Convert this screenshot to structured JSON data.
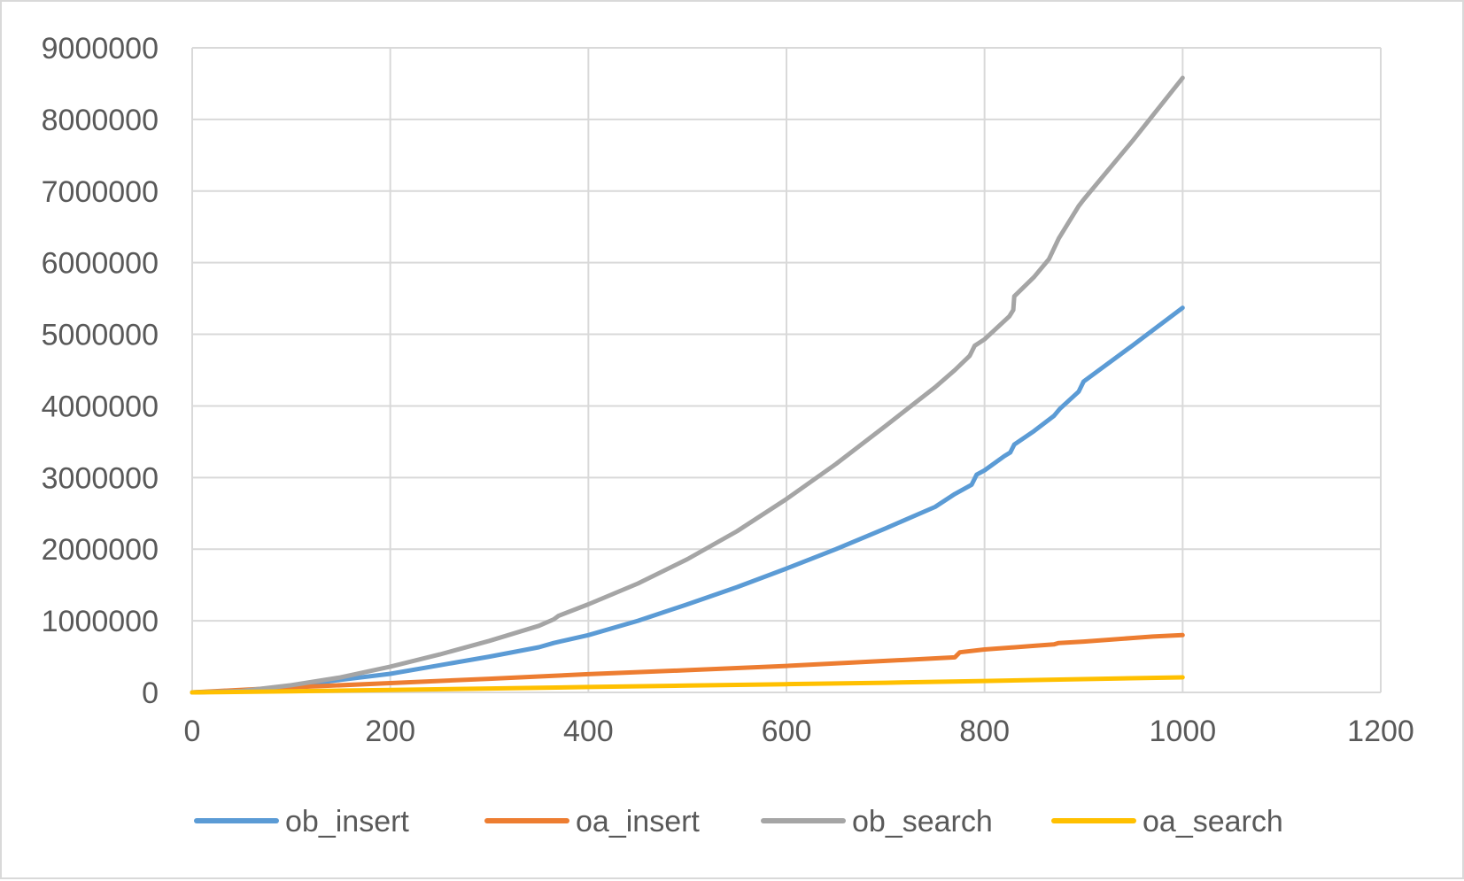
{
  "chart_data": {
    "type": "line",
    "title": "",
    "xlabel": "",
    "ylabel": "",
    "xlim": [
      0,
      1200
    ],
    "ylim": [
      0,
      9000000
    ],
    "x_ticks": [
      "0",
      "200",
      "400",
      "600",
      "800",
      "1000",
      "1200"
    ],
    "y_ticks": [
      "0",
      "1000000",
      "2000000",
      "3000000",
      "4000000",
      "5000000",
      "6000000",
      "7000000",
      "8000000",
      "9000000"
    ],
    "grid": true,
    "legend_position": "bottom",
    "series": [
      {
        "name": "ob_insert",
        "color": "#5b9bd5",
        "x": [
          0,
          50,
          100,
          150,
          200,
          250,
          300,
          350,
          365,
          400,
          450,
          500,
          550,
          600,
          650,
          700,
          750,
          770,
          787,
          792,
          800,
          820,
          826,
          830,
          850,
          870,
          876,
          895,
          900,
          950,
          1000
        ],
        "y": [
          0,
          18000,
          85000,
          175000,
          260000,
          380000,
          500000,
          630000,
          690000,
          800000,
          1000000,
          1230000,
          1470000,
          1730000,
          2000000,
          2290000,
          2590000,
          2770000,
          2900000,
          3040000,
          3100000,
          3300000,
          3350000,
          3460000,
          3650000,
          3860000,
          3960000,
          4200000,
          4340000,
          4850000,
          5370000
        ]
      },
      {
        "name": "oa_insert",
        "color": "#ed7d31",
        "x": [
          0,
          100,
          200,
          300,
          400,
          500,
          600,
          700,
          770,
          775,
          800,
          850,
          870,
          875,
          900,
          950,
          970,
          1000
        ],
        "y": [
          0,
          70000,
          130000,
          190000,
          255000,
          310000,
          370000,
          440000,
          490000,
          560000,
          600000,
          650000,
          670000,
          690000,
          710000,
          760000,
          780000,
          800000
        ]
      },
      {
        "name": "ob_search",
        "color": "#a5a5a5",
        "x": [
          0,
          50,
          100,
          150,
          200,
          250,
          300,
          350,
          365,
          370,
          400,
          450,
          500,
          550,
          600,
          650,
          700,
          750,
          770,
          785,
          790,
          800,
          825,
          829,
          830,
          850,
          865,
          875,
          895,
          900,
          950,
          1000
        ],
        "y": [
          0,
          20000,
          100000,
          210000,
          360000,
          530000,
          720000,
          930000,
          1020000,
          1070000,
          1230000,
          1520000,
          1860000,
          2250000,
          2700000,
          3190000,
          3720000,
          4260000,
          4500000,
          4700000,
          4840000,
          4930000,
          5250000,
          5340000,
          5530000,
          5800000,
          6050000,
          6340000,
          6790000,
          6880000,
          7710000,
          8580000
        ]
      },
      {
        "name": "oa_search",
        "color": "#ffc000",
        "x": [
          0,
          100,
          200,
          300,
          400,
          500,
          600,
          700,
          800,
          900,
          1000
        ],
        "y": [
          0,
          15000,
          35000,
          55000,
          75000,
          95000,
          115000,
          135000,
          160000,
          185000,
          210000
        ]
      }
    ]
  }
}
